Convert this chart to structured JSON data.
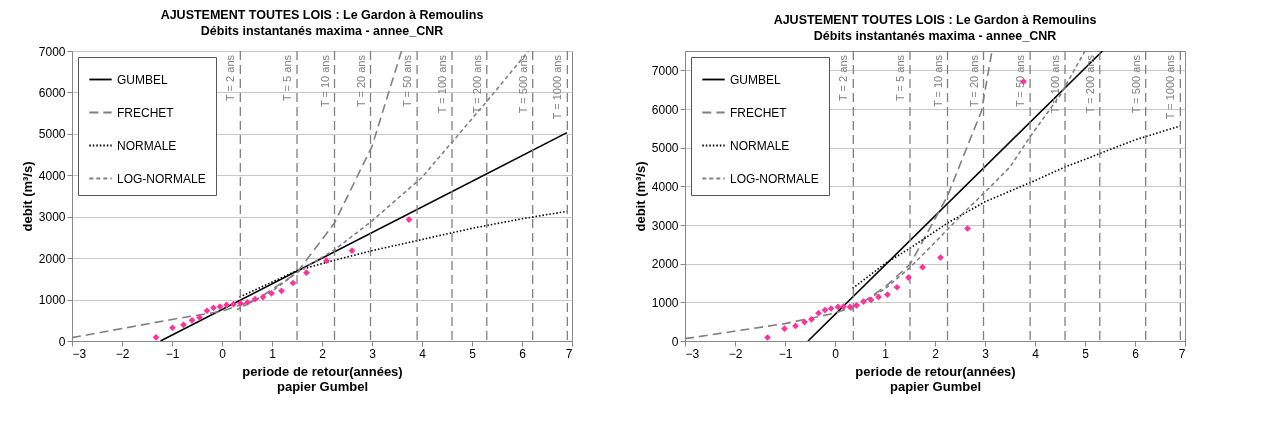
{
  "chart_data": [
    {
      "type": "line",
      "title": "AJUSTEMENT TOUTES LOIS : Le Gardon à Remoulins",
      "subtitle": "Débits instantanés maxima - annee_CNR",
      "xlabel": "periode de retour(années)\npapier Gumbel",
      "ylabel": "debit (m³/s)",
      "xlim": [
        -3,
        7
      ],
      "xticks": [
        -3,
        -2,
        -1,
        0,
        1,
        2,
        3,
        4,
        5,
        6,
        7
      ],
      "ylim": [
        0,
        7000
      ],
      "yticks": [
        0,
        1000,
        2000,
        3000,
        4000,
        5000,
        6000,
        7000
      ],
      "grid": "y",
      "legend": "top left",
      "series": [
        {
          "name": "GUMBEL",
          "color": "#000000",
          "line_style": "solid",
          "x": [
            -1.23,
            6.9
          ],
          "values": [
            0,
            5030
          ]
        },
        {
          "name": "FRECHET",
          "color": "#808080",
          "line_style": "dashed",
          "x": [
            -3,
            -2,
            -1,
            0,
            0.7,
            1.5,
            2.25,
            3,
            3.59
          ],
          "values": [
            80,
            300,
            520,
            720,
            1000,
            1650,
            2850,
            4700,
            7000
          ]
        },
        {
          "name": "NORMALE",
          "color": "#000000",
          "line_style": "dotted",
          "x": [
            0.35,
            1.5,
            2.25,
            3,
            4,
            5,
            6,
            6.9
          ],
          "values": [
            1060,
            1700,
            1950,
            2180,
            2450,
            2720,
            2950,
            3130
          ]
        },
        {
          "name": "LOG-NORMALE",
          "color": "#808080",
          "line_style": "shortdash",
          "x": [
            0.3,
            1,
            1.5,
            2.25,
            3,
            4,
            5.3,
            6.13
          ],
          "values": [
            760,
            1200,
            1650,
            2200,
            2900,
            3950,
            5790,
            7000
          ]
        },
        {
          "type": "scatter",
          "color": "#ff3399",
          "marker": "diamond",
          "x": [
            -1.32,
            -0.99,
            -0.77,
            -0.6,
            -0.45,
            -0.3,
            -0.17,
            -0.04,
            0.09,
            0.23,
            0.37,
            0.51,
            0.66,
            0.82,
            0.99,
            1.19,
            1.42,
            1.69,
            2.09,
            2.6,
            3.74
          ],
          "values": [
            90,
            320,
            390,
            500,
            570,
            730,
            800,
            830,
            870,
            890,
            910,
            930,
            1010,
            1060,
            1150,
            1210,
            1400,
            1650,
            1940,
            2180,
            2930
          ]
        }
      ],
      "ref_lines": [
        {
          "axis": "x",
          "value": 0.3665,
          "color": "#808080",
          "line_style": "dashed"
        },
        {
          "axis": "x",
          "value": 1.4999,
          "color": "#808080",
          "line_style": "dashed"
        },
        {
          "axis": "x",
          "value": 2.2504,
          "color": "#808080",
          "line_style": "dashed"
        },
        {
          "axis": "x",
          "value": 2.9702,
          "color": "#808080",
          "line_style": "dashed"
        },
        {
          "axis": "x",
          "value": 3.9019,
          "color": "#808080",
          "line_style": "dashed"
        },
        {
          "axis": "x",
          "value": 4.6001,
          "color": "#808080",
          "line_style": "dashed"
        },
        {
          "axis": "x",
          "value": 5.2958,
          "color": "#808080",
          "line_style": "dashed"
        },
        {
          "axis": "x",
          "value": 6.2136,
          "color": "#808080",
          "line_style": "dashed"
        },
        {
          "axis": "x",
          "value": 6.9073,
          "color": "#808080",
          "line_style": "dashed"
        }
      ],
      "annotations": [
        {
          "text": "T = 2 ans",
          "x": 0.3665,
          "y": 7000
        },
        {
          "text": "T = 5 ans",
          "x": 1.4999,
          "y": 7000
        },
        {
          "text": "T = 10 ans",
          "x": 2.2504,
          "y": 7000
        },
        {
          "text": "T = 20 ans",
          "x": 2.9702,
          "y": 7000
        },
        {
          "text": "T = 50 ans",
          "x": 3.9019,
          "y": 7000
        },
        {
          "text": "T = 100 ans",
          "x": 4.6001,
          "y": 7000
        },
        {
          "text": "T = 200 ans",
          "x": 5.2958,
          "y": 7000
        },
        {
          "text": "T = 500 ans",
          "x": 6.2136,
          "y": 7000
        },
        {
          "text": "T = 1000 ans",
          "x": 6.9073,
          "y": 7000
        }
      ]
    },
    {
      "type": "line",
      "title": "AJUSTEMENT TOUTES LOIS : Le Gardon à Remoulins",
      "subtitle": "Débits instantanés maxima - annee_CNR",
      "xlabel": "periode de retour(années)\npapier Gumbel",
      "ylabel": "debit (m³/s)",
      "xlim": [
        -3,
        7
      ],
      "xticks": [
        -3,
        -2,
        -1,
        0,
        1,
        2,
        3,
        4,
        5,
        6,
        7
      ],
      "ylim": [
        0,
        7500
      ],
      "yticks": [
        0,
        1000,
        2000,
        3000,
        4000,
        5000,
        6000,
        7000
      ],
      "grid": "y",
      "legend": "top left",
      "series": [
        {
          "name": "GUMBEL",
          "color": "#000000",
          "line_style": "solid",
          "x": [
            -0.54,
            5.35
          ],
          "values": [
            0,
            7500
          ]
        },
        {
          "name": "FRECHET",
          "color": "#808080",
          "line_style": "dashed",
          "x": [
            -3,
            -1,
            0,
            0.5,
            1,
            1.5,
            2.25,
            2.93,
            3.14
          ],
          "values": [
            60,
            450,
            720,
            950,
            1400,
            1980,
            3750,
            5950,
            7500
          ]
        },
        {
          "name": "NORMALE",
          "color": "#000000",
          "line_style": "dotted",
          "x": [
            0.35,
            1,
            1.5,
            2.25,
            3,
            4,
            4.6,
            5.3,
            6,
            6.9
          ],
          "values": [
            1360,
            2000,
            2400,
            3050,
            3600,
            4150,
            4500,
            4850,
            5200,
            5560
          ]
        },
        {
          "name": "LOG-NORMALE",
          "color": "#808080",
          "line_style": "shortdash",
          "x": [
            0.3,
            1,
            1.5,
            2,
            2.6,
            3,
            3.5,
            3.9,
            4.5,
            5
          ],
          "values": [
            800,
            1350,
            1900,
            2550,
            3350,
            3850,
            4500,
            5280,
            6350,
            7500
          ]
        },
        {
          "type": "scatter",
          "color": "#ff3399",
          "marker": "diamond",
          "x": [
            -1.35,
            -1.01,
            -0.79,
            -0.61,
            -0.47,
            -0.33,
            -0.2,
            -0.08,
            0.06,
            0.17,
            0.3,
            0.43,
            0.57,
            0.72,
            0.87,
            1.05,
            1.24,
            1.47,
            1.75,
            2.11,
            2.65,
            3.77
          ],
          "values": [
            90,
            320,
            390,
            490,
            560,
            720,
            800,
            840,
            880,
            890,
            880,
            920,
            1020,
            1060,
            1140,
            1200,
            1390,
            1640,
            1910,
            2160,
            2910,
            6710
          ]
        }
      ],
      "ref_lines": [
        {
          "axis": "x",
          "value": 0.3665,
          "color": "#808080",
          "line_style": "dashed"
        },
        {
          "axis": "x",
          "value": 1.4999,
          "color": "#808080",
          "line_style": "dashed"
        },
        {
          "axis": "x",
          "value": 2.2504,
          "color": "#808080",
          "line_style": "dashed"
        },
        {
          "axis": "x",
          "value": 2.9702,
          "color": "#808080",
          "line_style": "dashed"
        },
        {
          "axis": "x",
          "value": 3.9019,
          "color": "#808080",
          "line_style": "dashed"
        },
        {
          "axis": "x",
          "value": 4.6001,
          "color": "#808080",
          "line_style": "dashed"
        },
        {
          "axis": "x",
          "value": 5.2958,
          "color": "#808080",
          "line_style": "dashed"
        },
        {
          "axis": "x",
          "value": 6.2136,
          "color": "#808080",
          "line_style": "dashed"
        },
        {
          "axis": "x",
          "value": 6.9073,
          "color": "#808080",
          "line_style": "dashed"
        }
      ],
      "annotations": [
        {
          "text": "T = 2 ans",
          "x": 0.3665,
          "y": 7500
        },
        {
          "text": "T = 5 ans",
          "x": 1.4999,
          "y": 7500
        },
        {
          "text": "T = 10 ans",
          "x": 2.2504,
          "y": 7500
        },
        {
          "text": "T = 20 ans",
          "x": 2.9702,
          "y": 7500
        },
        {
          "text": "T = 50 ans",
          "x": 3.9019,
          "y": 7500
        },
        {
          "text": "T = 100 ans",
          "x": 4.6001,
          "y": 7500
        },
        {
          "text": "T = 200 ans",
          "x": 5.2958,
          "y": 7500
        },
        {
          "text": "T = 500 ans",
          "x": 6.2136,
          "y": 7500
        },
        {
          "text": "T = 1000 ans",
          "x": 6.9073,
          "y": 7500
        }
      ]
    }
  ]
}
